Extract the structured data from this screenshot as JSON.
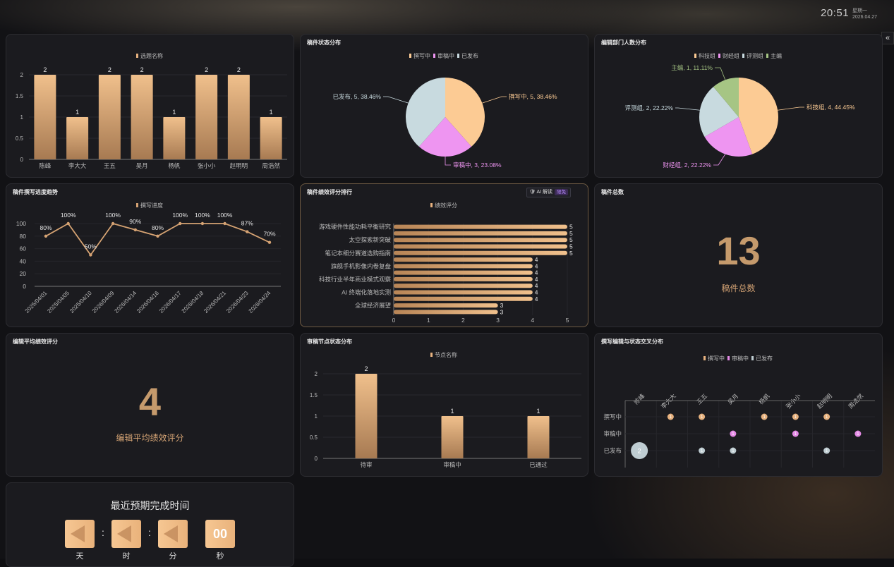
{
  "topbar": {
    "time": "20:51",
    "weekday": "星期一",
    "date": "2026.04.27",
    "collapse_icon": "«"
  },
  "panels": {
    "topic": {
      "title": "选题名称"
    },
    "status": {
      "title": "稿件状态分布"
    },
    "dept": {
      "title": "编辑部门人数分布"
    },
    "trend": {
      "title": "稿件撰写进度趋势"
    },
    "rank": {
      "title": "稿件绩效评分排行",
      "ai_label": "AI 解读",
      "ai_tag": "限免"
    },
    "total": {
      "title": "稿件总数",
      "value": "13",
      "label": "稿件总数"
    },
    "avg": {
      "title": "编辑平均绩效评分",
      "value": "4",
      "label": "编辑平均绩效评分"
    },
    "node": {
      "title": "审稿节点状态分布"
    },
    "cross": {
      "title": "撰写编辑与状态交叉分布"
    },
    "countdown": {
      "title": "最近预期完成时间",
      "units": {
        "day": "天",
        "hour": "时",
        "minute": "分",
        "second": "秒"
      },
      "second_value": "00"
    }
  },
  "chart_data": [
    {
      "type": "bar",
      "legend": [
        "选题名称"
      ],
      "categories": [
        "陈峰",
        "李大大",
        "王五",
        "吴月",
        "杨帆",
        "张小小",
        "赵明明",
        "周浩然"
      ],
      "values": [
        2,
        1,
        2,
        2,
        1,
        2,
        2,
        1
      ],
      "yticks": [
        "0",
        "0.5",
        "1",
        "1.5",
        "2"
      ],
      "ylim": [
        0,
        2
      ],
      "color": "#e7b27f"
    },
    {
      "type": "pie",
      "legend": [
        "撰写中",
        "审稿中",
        "已发布"
      ],
      "slices": [
        {
          "name": "撰写中",
          "value": 5,
          "label": "撰写中, 5, 38.46%",
          "color": "#fccb94"
        },
        {
          "name": "审稿中",
          "value": 3,
          "label": "审稿中, 3, 23.08%",
          "color": "#ee95f1"
        },
        {
          "name": "已发布",
          "value": 5,
          "label": "已发布, 5, 38.46%",
          "color": "#c8dadf"
        }
      ]
    },
    {
      "type": "pie",
      "legend": [
        "科技组",
        "财经组",
        "评测组",
        "主编"
      ],
      "slices": [
        {
          "name": "科技组",
          "value": 4,
          "label": "科技组, 4, 44.45%",
          "color": "#fccb94"
        },
        {
          "name": "财经组",
          "value": 2,
          "label": "财经组, 2, 22.22%",
          "color": "#ee95f1"
        },
        {
          "name": "评测组",
          "value": 2,
          "label": "评测组, 2, 22.22%",
          "color": "#c8dadf"
        },
        {
          "name": "主编",
          "value": 1,
          "label": "主编, 1, 11.11%",
          "color": "#a6c584"
        }
      ]
    },
    {
      "type": "line",
      "legend": [
        "撰写进度"
      ],
      "x": [
        "2025/04/01",
        "2025/04/05",
        "2025/04/10",
        "2026/04/09",
        "2026/04/14",
        "2026/04/16",
        "2026/04/17",
        "2026/04/18",
        "2026/04/21",
        "2026/04/23",
        "2026/04/24"
      ],
      "values": [
        80,
        100,
        50,
        100,
        90,
        80,
        100,
        100,
        100,
        87,
        70
      ],
      "labels": [
        "80%",
        "100%",
        "50%",
        "100%",
        "90%",
        "80%",
        "100%",
        "100%",
        "100%",
        "87%",
        "70%"
      ],
      "yticks": [
        "0",
        "20",
        "40",
        "60",
        "80",
        "100"
      ],
      "ylim": [
        0,
        100
      ],
      "color": "#d6a373"
    },
    {
      "type": "bar",
      "orientation": "horizontal",
      "legend": [
        "绩效评分"
      ],
      "labeled_categories": [
        "游戏硬件性能功耗平衡研究",
        "太空探索新突破",
        "笔记本细分赛道选购指南",
        "旗舰手机影像内卷复盘",
        "科技行业半年商业模式观察",
        "AI 终端化落地实测",
        "全球经济展望"
      ],
      "values": [
        5,
        5,
        5,
        5,
        5,
        4,
        4,
        4,
        4,
        4,
        4,
        4,
        3,
        3
      ],
      "xticks": [
        "0",
        "1",
        "2",
        "3",
        "4",
        "5"
      ],
      "xlim": [
        0,
        5
      ],
      "color": "#e7b27f"
    },
    {
      "type": "bar",
      "legend": [
        "节点名称"
      ],
      "categories": [
        "待审",
        "审稿中",
        "已通过"
      ],
      "values": [
        2,
        1,
        1
      ],
      "yticks": [
        "0",
        "0.5",
        "1",
        "1.5",
        "2"
      ],
      "ylim": [
        0,
        2
      ],
      "color": "#e7b27f"
    },
    {
      "type": "scatter",
      "legend": [
        "撰写中",
        "审稿中",
        "已发布"
      ],
      "x_categories": [
        "陈峰",
        "李大大",
        "王五",
        "吴月",
        "杨帆",
        "张小小",
        "赵明明",
        "周浩然"
      ],
      "y_categories": [
        "撰写中",
        "审稿中",
        "已发布"
      ],
      "points": [
        {
          "x": "李大大",
          "y": "撰写中",
          "value": 1
        },
        {
          "x": "王五",
          "y": "撰写中",
          "value": 1
        },
        {
          "x": "杨帆",
          "y": "撰写中",
          "value": 1
        },
        {
          "x": "张小小",
          "y": "撰写中",
          "value": 1
        },
        {
          "x": "赵明明",
          "y": "撰写中",
          "value": 1
        },
        {
          "x": "吴月",
          "y": "审稿中",
          "value": 1
        },
        {
          "x": "张小小",
          "y": "审稿中",
          "value": 1
        },
        {
          "x": "周浩然",
          "y": "审稿中",
          "value": 1
        },
        {
          "x": "陈峰",
          "y": "已发布",
          "value": 2
        },
        {
          "x": "王五",
          "y": "已发布",
          "value": 1
        },
        {
          "x": "吴月",
          "y": "已发布",
          "value": 1
        },
        {
          "x": "赵明明",
          "y": "已发布",
          "value": 1
        }
      ],
      "colors": {
        "撰写中": "#e7b27f",
        "审稿中": "#e58ae6",
        "已发布": "#bfcdd2"
      }
    }
  ]
}
